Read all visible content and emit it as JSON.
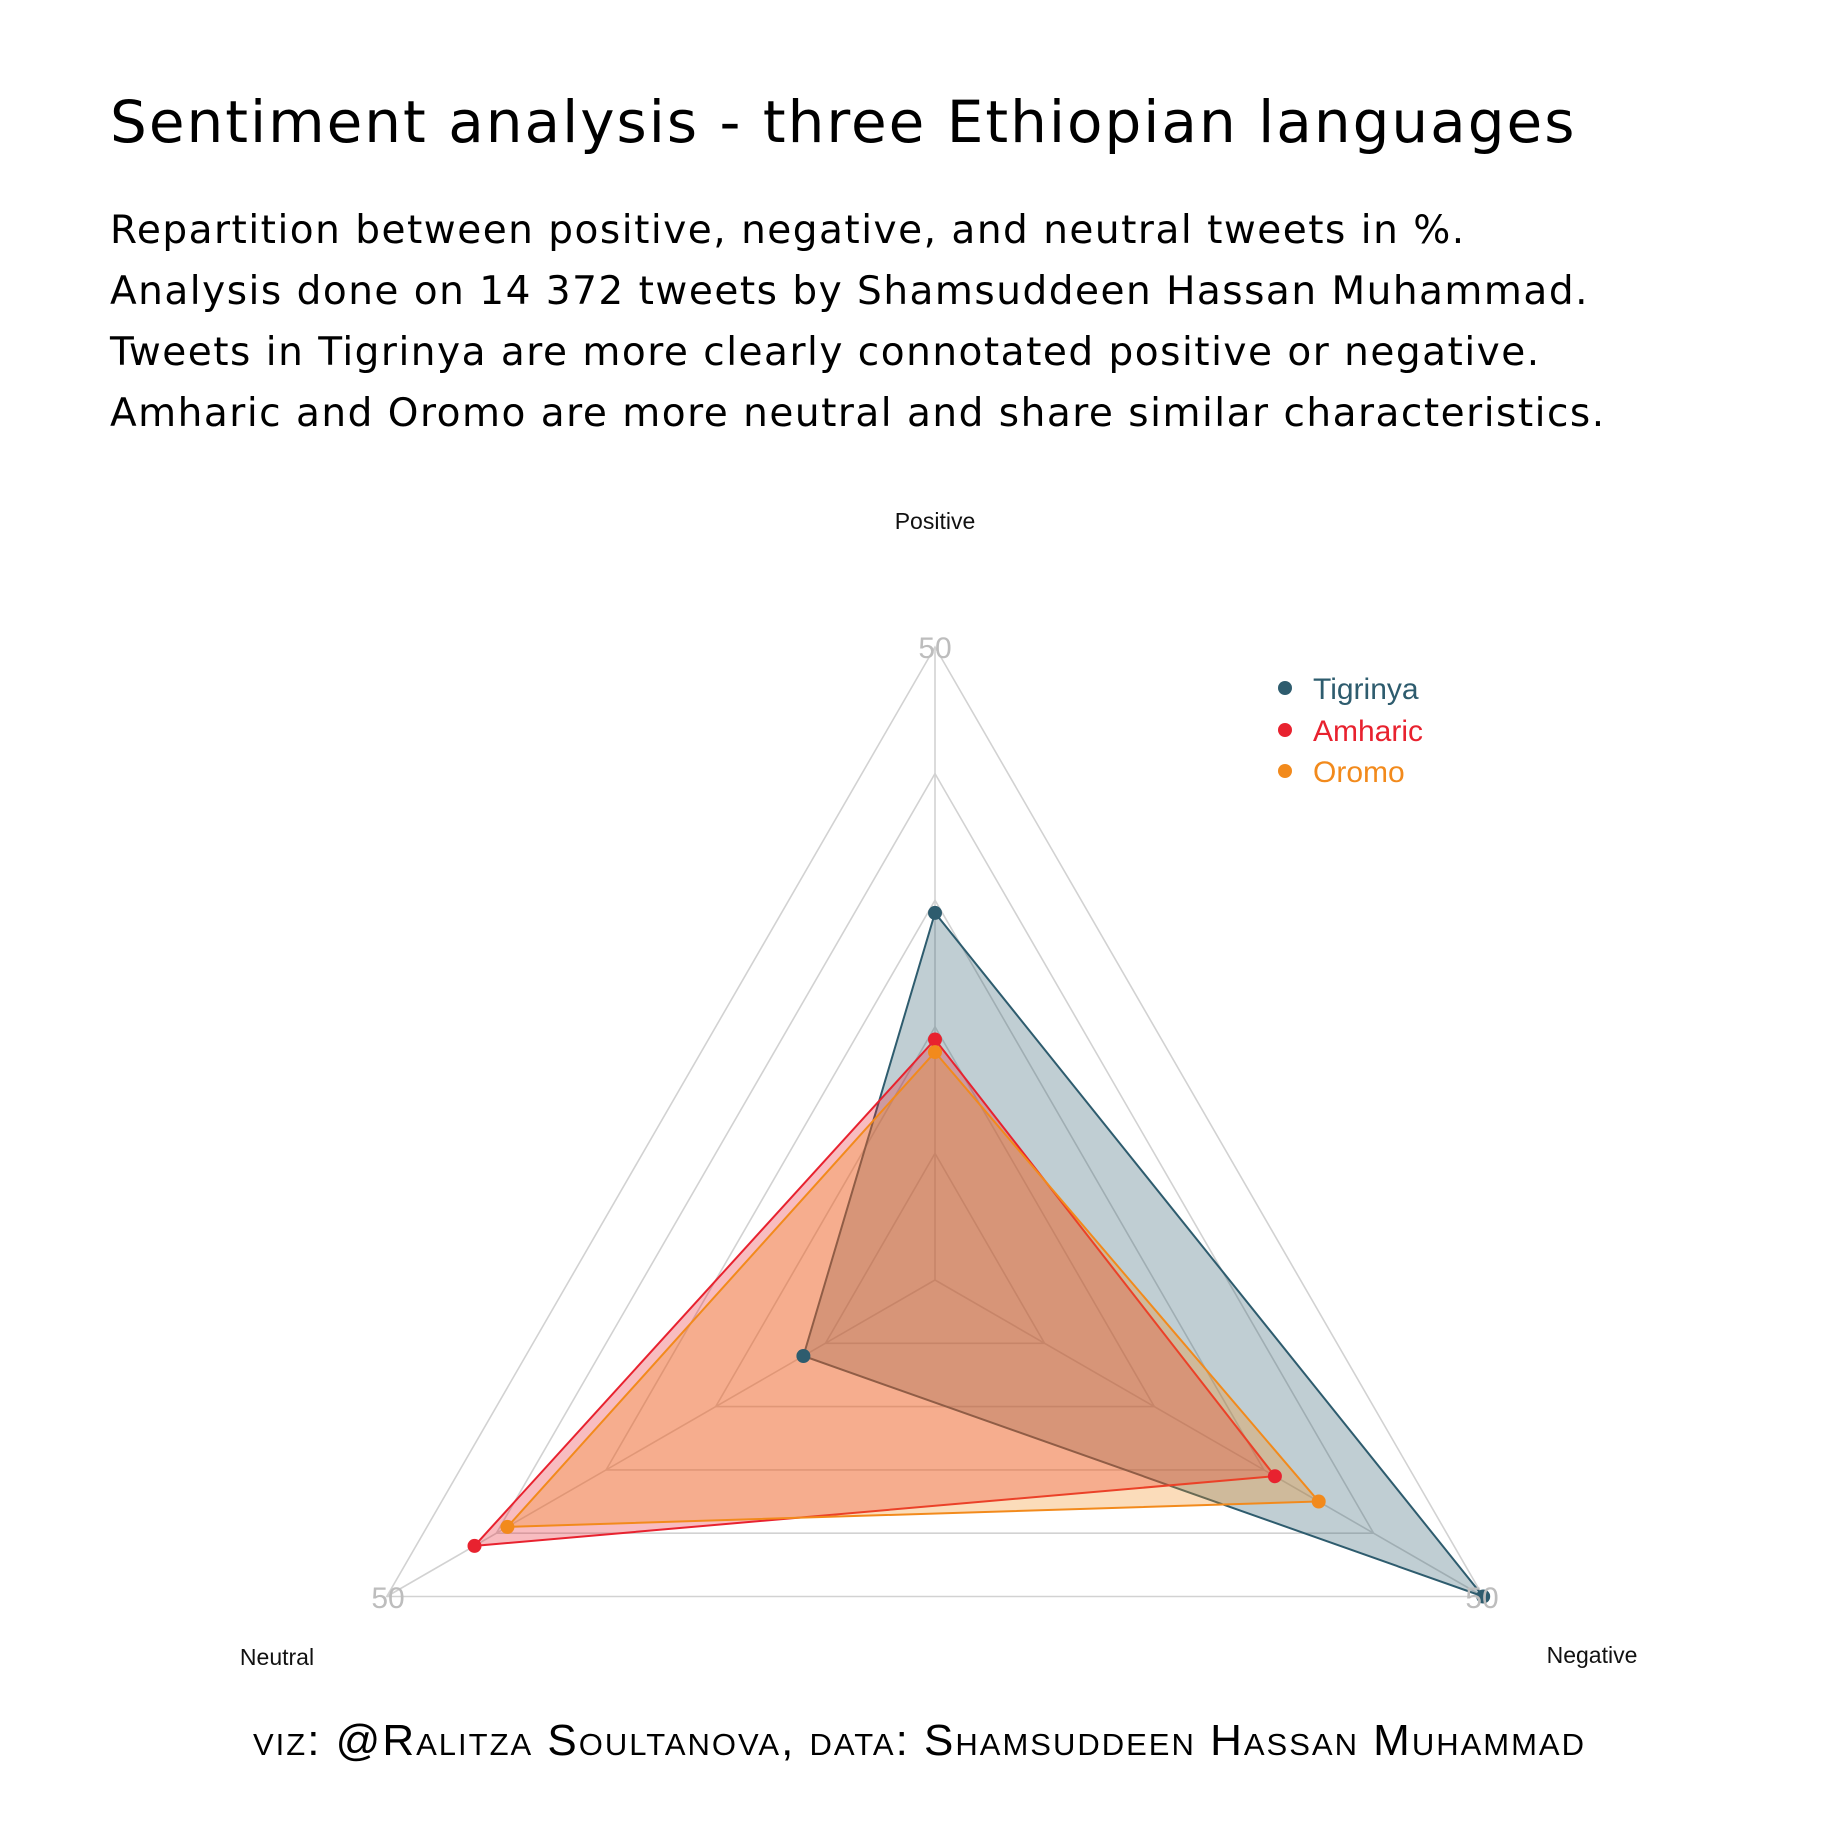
{
  "title": "Sentiment analysis - three Ethiopian languages",
  "subtitle": [
    "Repartition between positive, negative, and neutral tweets in %.",
    "Analysis done on 14 372 tweets by Shamsuddeen Hassan Muhammad.",
    "Tweets in Tigrinya are more clearly connotated positive or negative.",
    "Amharic and Oromo are more neutral and share similar characteristics."
  ],
  "caption": "viz: @Ralitza Soultanova, data: Shamsuddeen Hassan Muhammad",
  "chart_data": {
    "type": "radar",
    "axes": [
      "Positive",
      "Negative",
      "Neutral"
    ],
    "tick_labels": [
      "50",
      "50",
      "50"
    ],
    "max": 50,
    "grid_levels": 5,
    "legend_position": "top-right",
    "series": [
      {
        "name": "Tigrinya",
        "color": "#2e5c6e",
        "values": {
          "Positive": 29,
          "Negative": 50,
          "Neutral": 12
        }
      },
      {
        "name": "Amharic",
        "color": "#e8222f",
        "values": {
          "Positive": 19,
          "Negative": 31,
          "Neutral": 42
        }
      },
      {
        "name": "Oromo",
        "color": "#f28a1c",
        "values": {
          "Positive": 18,
          "Negative": 35,
          "Neutral": 39
        }
      }
    ]
  }
}
